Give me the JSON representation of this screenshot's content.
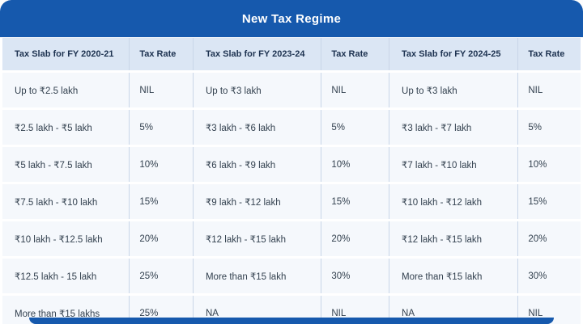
{
  "title": "New Tax Regime",
  "colors": {
    "header_bg": "#1659ad",
    "header_text": "#ffffff",
    "col_header_bg": "#dbe6f4",
    "col_header_text": "#1d3250",
    "row_bg": "#f5f8fc",
    "row_text": "#33414f",
    "divider": "#c9d6e8",
    "footer_bg": "#1659ad"
  },
  "chart_data": {
    "type": "table",
    "title": "New Tax Regime",
    "columns": [
      "Tax Slab for FY 2020-21",
      "Tax Rate",
      "Tax Slab for FY 2023-24",
      "Tax Rate",
      "Tax Slab for FY 2024-25",
      "Tax Rate"
    ],
    "rows": [
      [
        "Up to ₹2.5 lakh",
        "NIL",
        "Up to ₹3 lakh",
        "NIL",
        "Up to ₹3 lakh",
        "NIL"
      ],
      [
        "₹2.5 lakh - ₹5 lakh",
        "5%",
        "₹3 lakh - ₹6 lakh",
        "5%",
        "₹3 lakh - ₹7 lakh",
        "5%"
      ],
      [
        "₹5 lakh - ₹7.5 lakh",
        "10%",
        "₹6 lakh - ₹9 lakh",
        "10%",
        "₹7 lakh - ₹10 lakh",
        "10%"
      ],
      [
        "₹7.5 lakh - ₹10 lakh",
        "15%",
        "₹9 lakh - ₹12 lakh",
        "15%",
        "₹10 lakh - ₹12 lakh",
        "15%"
      ],
      [
        "₹10 lakh - ₹12.5 lakh",
        "20%",
        "₹12 lakh - ₹15 lakh",
        "20%",
        "₹12 lakh - ₹15 lakh",
        "20%"
      ],
      [
        "₹12.5 lakh - 15 lakh",
        "25%",
        "More than ₹15 lakh",
        "30%",
        "More than ₹15 lakh",
        "30%"
      ],
      [
        "More than ₹15 lakhs",
        "25%",
        "NA",
        "NIL",
        "NA",
        "NIL"
      ]
    ]
  }
}
